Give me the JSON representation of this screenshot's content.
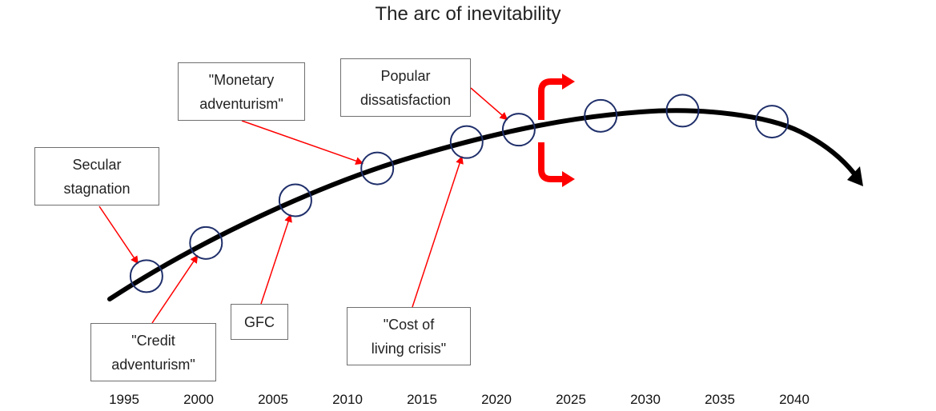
{
  "title": "The arc of inevitability",
  "colors": {
    "curve": "#000000",
    "marker": "#1f2f6a",
    "pointer": "#ff0000",
    "fork": "#ff0000",
    "box_border": "#6f6f6f"
  },
  "labels": [
    {
      "id": "secular-stagnation",
      "text": "Secular\nstagnation"
    },
    {
      "id": "credit-adventurism",
      "text": "\"Credit\nadventurism\""
    },
    {
      "id": "gfc",
      "text": "GFC"
    },
    {
      "id": "monetary-adventurism",
      "text": "\"Monetary\nadventurism\""
    },
    {
      "id": "cost-of-living-crisis",
      "text": "\"Cost of\nliving crisis\""
    },
    {
      "id": "popular-dissatisfaction",
      "text": "Popular\ndissatisfaction"
    }
  ],
  "timeline": [
    "1995",
    "2000",
    "2005",
    "2010",
    "2015",
    "2020",
    "2025",
    "2030",
    "2035",
    "2040"
  ],
  "events": [
    {
      "year": 1996.5,
      "label": "secular-stagnation"
    },
    {
      "year": 2000.5,
      "label": "credit-adventurism"
    },
    {
      "year": 2006.5,
      "label": "gfc"
    },
    {
      "year": 2012,
      "label": "monetary-adventurism"
    },
    {
      "year": 2018,
      "label": "cost-of-living-crisis"
    },
    {
      "year": 2021.5,
      "label": "popular-dissatisfaction"
    },
    {
      "year": 2027
    },
    {
      "year": 2032.5
    },
    {
      "year": 2038.5
    }
  ],
  "fork_year": 2023.5
}
